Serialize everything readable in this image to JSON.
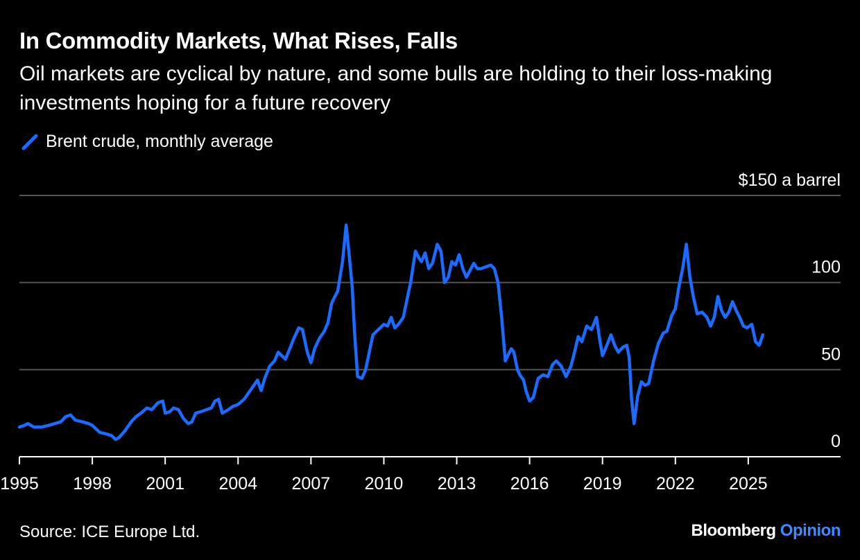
{
  "title": "In Commodity Markets, What Rises, Falls",
  "subtitle": "Oil markets are cyclical by nature, and some bulls are holding to their loss-making investments hoping for a future recovery",
  "source": "Source: ICE Europe Ltd.",
  "logo": {
    "brand": "Bloomberg",
    "section": "Opinion"
  },
  "colors": {
    "series": "#1a6bff",
    "grid": "#555555",
    "axis": "#ffffff",
    "background": "#000000"
  },
  "chart_data": {
    "type": "line",
    "title": "In Commodity Markets, What Rises, Falls",
    "ylabel_top": "$150 a barrel",
    "yticks": [
      {
        "value": 150,
        "label": "$150 a barrel"
      },
      {
        "value": 100,
        "label": "100"
      },
      {
        "value": 50,
        "label": "50"
      },
      {
        "value": 0,
        "label": "0"
      }
    ],
    "ylim": [
      0,
      150
    ],
    "xlim": [
      1995,
      2028.8
    ],
    "xticks": [
      {
        "value": 1995,
        "label": "1995"
      },
      {
        "value": 1998,
        "label": "1998"
      },
      {
        "value": 2001,
        "label": "2001"
      },
      {
        "value": 2004,
        "label": "2004"
      },
      {
        "value": 2007,
        "label": "2007"
      },
      {
        "value": 2010,
        "label": "2010"
      },
      {
        "value": 2013,
        "label": "2013"
      },
      {
        "value": 2016,
        "label": "2016"
      },
      {
        "value": 2019,
        "label": "2019"
      },
      {
        "value": 2022,
        "label": "2022"
      },
      {
        "value": 2025,
        "label": "2025"
      }
    ],
    "series": [
      {
        "name": "Brent crude, monthly average",
        "color": "#1a6bff",
        "points": [
          [
            1995.0,
            17
          ],
          [
            1995.2,
            18
          ],
          [
            1995.35,
            19
          ],
          [
            1995.6,
            17
          ],
          [
            1995.9,
            17
          ],
          [
            1996.2,
            18
          ],
          [
            1996.45,
            19
          ],
          [
            1996.7,
            20
          ],
          [
            1996.9,
            23
          ],
          [
            1997.1,
            24
          ],
          [
            1997.3,
            21
          ],
          [
            1997.6,
            20
          ],
          [
            1997.85,
            19
          ],
          [
            1998.0,
            18
          ],
          [
            1998.3,
            14
          ],
          [
            1998.6,
            13
          ],
          [
            1998.8,
            12
          ],
          [
            1998.95,
            10
          ],
          [
            1999.1,
            11
          ],
          [
            1999.35,
            15
          ],
          [
            1999.6,
            20
          ],
          [
            1999.8,
            23
          ],
          [
            2000.0,
            25
          ],
          [
            2000.25,
            28
          ],
          [
            2000.45,
            27
          ],
          [
            2000.7,
            31
          ],
          [
            2000.9,
            32
          ],
          [
            2001.0,
            25
          ],
          [
            2001.2,
            26
          ],
          [
            2001.35,
            28
          ],
          [
            2001.55,
            27
          ],
          [
            2001.75,
            22
          ],
          [
            2001.95,
            19
          ],
          [
            2002.1,
            20
          ],
          [
            2002.25,
            25
          ],
          [
            2002.5,
            26
          ],
          [
            2002.7,
            27
          ],
          [
            2002.9,
            28
          ],
          [
            2003.05,
            32
          ],
          [
            2003.2,
            33
          ],
          [
            2003.35,
            25
          ],
          [
            2003.6,
            27
          ],
          [
            2003.8,
            29
          ],
          [
            2004.0,
            30
          ],
          [
            2004.25,
            33
          ],
          [
            2004.45,
            37
          ],
          [
            2004.6,
            40
          ],
          [
            2004.8,
            44
          ],
          [
            2004.95,
            38
          ],
          [
            2005.1,
            45
          ],
          [
            2005.3,
            52
          ],
          [
            2005.5,
            55
          ],
          [
            2005.65,
            60
          ],
          [
            2005.8,
            58
          ],
          [
            2005.95,
            56
          ],
          [
            2006.1,
            61
          ],
          [
            2006.3,
            68
          ],
          [
            2006.5,
            74
          ],
          [
            2006.65,
            73
          ],
          [
            2006.85,
            60
          ],
          [
            2007.0,
            54
          ],
          [
            2007.15,
            62
          ],
          [
            2007.35,
            68
          ],
          [
            2007.55,
            72
          ],
          [
            2007.7,
            77
          ],
          [
            2007.85,
            88
          ],
          [
            2007.95,
            91
          ],
          [
            2008.1,
            95
          ],
          [
            2008.3,
            112
          ],
          [
            2008.45,
            133
          ],
          [
            2008.58,
            115
          ],
          [
            2008.7,
            97
          ],
          [
            2008.8,
            70
          ],
          [
            2008.92,
            46
          ],
          [
            2009.1,
            45
          ],
          [
            2009.25,
            50
          ],
          [
            2009.4,
            60
          ],
          [
            2009.55,
            70
          ],
          [
            2009.7,
            72
          ],
          [
            2009.85,
            74
          ],
          [
            2010.0,
            76
          ],
          [
            2010.15,
            75
          ],
          [
            2010.3,
            80
          ],
          [
            2010.45,
            74
          ],
          [
            2010.6,
            76
          ],
          [
            2010.8,
            80
          ],
          [
            2010.95,
            90
          ],
          [
            2011.1,
            100
          ],
          [
            2011.3,
            118
          ],
          [
            2011.45,
            114
          ],
          [
            2011.55,
            112
          ],
          [
            2011.7,
            117
          ],
          [
            2011.85,
            108
          ],
          [
            2012.0,
            111
          ],
          [
            2012.2,
            122
          ],
          [
            2012.35,
            118
          ],
          [
            2012.5,
            100
          ],
          [
            2012.65,
            103
          ],
          [
            2012.8,
            112
          ],
          [
            2012.95,
            110
          ],
          [
            2013.1,
            116
          ],
          [
            2013.25,
            108
          ],
          [
            2013.4,
            103
          ],
          [
            2013.55,
            107
          ],
          [
            2013.7,
            111
          ],
          [
            2013.85,
            108
          ],
          [
            2014.0,
            108
          ],
          [
            2014.2,
            109
          ],
          [
            2014.4,
            110
          ],
          [
            2014.55,
            108
          ],
          [
            2014.7,
            100
          ],
          [
            2014.85,
            80
          ],
          [
            2015.0,
            55
          ],
          [
            2015.1,
            58
          ],
          [
            2015.25,
            62
          ],
          [
            2015.35,
            60
          ],
          [
            2015.5,
            50
          ],
          [
            2015.6,
            47
          ],
          [
            2015.75,
            44
          ],
          [
            2015.85,
            38
          ],
          [
            2016.0,
            32
          ],
          [
            2016.15,
            34
          ],
          [
            2016.35,
            45
          ],
          [
            2016.55,
            47
          ],
          [
            2016.75,
            46
          ],
          [
            2016.95,
            53
          ],
          [
            2017.1,
            55
          ],
          [
            2017.3,
            52
          ],
          [
            2017.5,
            46
          ],
          [
            2017.7,
            52
          ],
          [
            2017.85,
            60
          ],
          [
            2018.0,
            69
          ],
          [
            2018.15,
            66
          ],
          [
            2018.35,
            75
          ],
          [
            2018.55,
            73
          ],
          [
            2018.75,
            80
          ],
          [
            2018.9,
            66
          ],
          [
            2019.0,
            58
          ],
          [
            2019.15,
            63
          ],
          [
            2019.35,
            70
          ],
          [
            2019.5,
            64
          ],
          [
            2019.65,
            60
          ],
          [
            2019.85,
            63
          ],
          [
            2020.0,
            64
          ],
          [
            2020.1,
            57
          ],
          [
            2020.2,
            33
          ],
          [
            2020.3,
            19
          ],
          [
            2020.45,
            35
          ],
          [
            2020.6,
            43
          ],
          [
            2020.75,
            41
          ],
          [
            2020.9,
            42
          ],
          [
            2021.1,
            55
          ],
          [
            2021.3,
            65
          ],
          [
            2021.5,
            71
          ],
          [
            2021.65,
            72
          ],
          [
            2021.85,
            81
          ],
          [
            2022.0,
            85
          ],
          [
            2022.15,
            98
          ],
          [
            2022.3,
            108
          ],
          [
            2022.45,
            122
          ],
          [
            2022.6,
            103
          ],
          [
            2022.75,
            91
          ],
          [
            2022.9,
            82
          ],
          [
            2023.1,
            83
          ],
          [
            2023.3,
            80
          ],
          [
            2023.45,
            75
          ],
          [
            2023.6,
            80
          ],
          [
            2023.75,
            92
          ],
          [
            2023.9,
            84
          ],
          [
            2024.05,
            80
          ],
          [
            2024.2,
            83
          ],
          [
            2024.35,
            89
          ],
          [
            2024.5,
            84
          ],
          [
            2024.65,
            80
          ],
          [
            2024.8,
            75
          ],
          [
            2024.95,
            74
          ],
          [
            2025.15,
            76
          ],
          [
            2025.3,
            66
          ],
          [
            2025.45,
            64
          ],
          [
            2025.6,
            70
          ]
        ]
      }
    ]
  }
}
